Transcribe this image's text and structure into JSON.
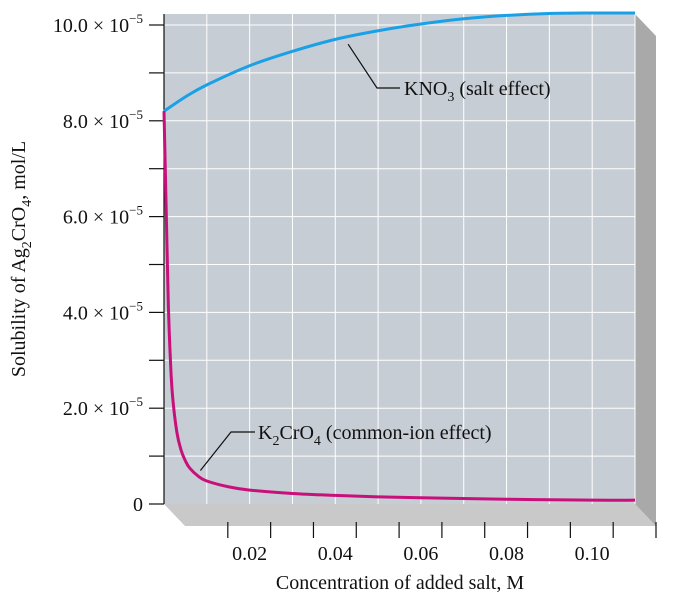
{
  "chart_data": {
    "type": "line",
    "xlabel": "Concentration of added salt, M",
    "ylabel_parts": [
      "Solubility of Ag",
      "2",
      "CrO",
      "4",
      ", mol/L"
    ],
    "xlim": [
      0,
      0.11
    ],
    "ylim": [
      0,
      0.0001
    ],
    "x_ticks": [
      {
        "value": 0.02,
        "label": "0.02"
      },
      {
        "value": 0.04,
        "label": "0.04"
      },
      {
        "value": 0.06,
        "label": "0.06"
      },
      {
        "value": 0.08,
        "label": "0.08"
      },
      {
        "value": 0.1,
        "label": "0.10"
      }
    ],
    "y_ticks": [
      {
        "value": 0,
        "mantissa": "0",
        "exponent": ""
      },
      {
        "value": 2e-05,
        "mantissa": "2.0 × 10",
        "exponent": "−5"
      },
      {
        "value": 4e-05,
        "mantissa": "4.0 × 10",
        "exponent": "−5"
      },
      {
        "value": 6e-05,
        "mantissa": "6.0 × 10",
        "exponent": "−5"
      },
      {
        "value": 8e-05,
        "mantissa": "8.0 × 10",
        "exponent": "−5"
      },
      {
        "value": 0.0001,
        "mantissa": "10.0 × 10",
        "exponent": "−5"
      }
    ],
    "grid": true,
    "series": [
      {
        "label_parts": [
          "KNO",
          "3",
          " (salt effect)"
        ],
        "color": "#1aa0e6",
        "x": [
          0,
          0.005,
          0.01,
          0.02,
          0.03,
          0.04,
          0.05,
          0.06,
          0.07,
          0.08,
          0.09,
          0.1,
          0.11
        ],
        "y": [
          8.2e-05,
          8.5e-05,
          8.75e-05,
          9.15e-05,
          9.45e-05,
          9.7e-05,
          9.88e-05,
          0.0001002,
          0.0001013,
          0.000102,
          0.0001024,
          0.0001025,
          0.0001025
        ]
      },
      {
        "label_parts": [
          "K",
          "2",
          "CrO",
          "4",
          " (common-ion effect)"
        ],
        "color": "#c8107a",
        "x": [
          0,
          0.0005,
          0.001,
          0.0015,
          0.002,
          0.003,
          0.004,
          0.005,
          0.006,
          0.008,
          0.01,
          0.015,
          0.02,
          0.03,
          0.04,
          0.05,
          0.06,
          0.08,
          0.1,
          0.11
        ],
        "y": [
          8.2e-05,
          6.2e-05,
          4.2e-05,
          3e-05,
          2.25e-05,
          1.5e-05,
          1.12e-05,
          9e-06,
          7.5e-06,
          5.8e-06,
          4.8e-06,
          3.6e-06,
          2.9e-06,
          2.2e-06,
          1.8e-06,
          1.5e-06,
          1.3e-06,
          1e-06,
          8e-07,
          8e-07
        ]
      }
    ]
  }
}
